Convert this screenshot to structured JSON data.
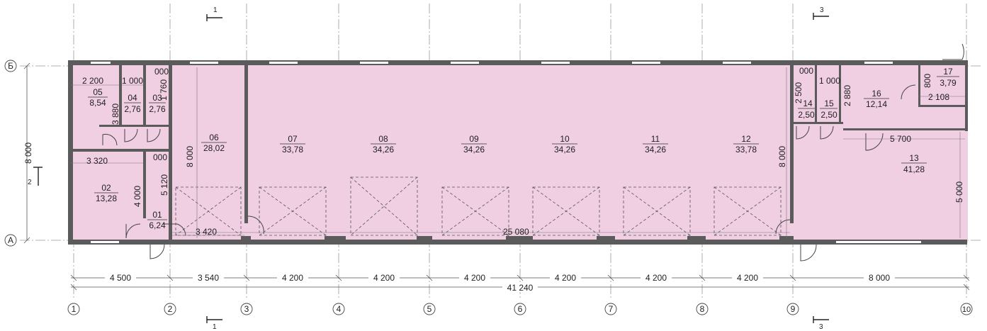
{
  "colors": {
    "room_fill": "#f0cfe3",
    "wall": "#5b5b5b",
    "line": "#555555",
    "axis_line": "#9a9a9a"
  },
  "axes_x": [
    {
      "label": "1"
    },
    {
      "label": "2"
    },
    {
      "label": "3"
    },
    {
      "label": "4"
    },
    {
      "label": "5"
    },
    {
      "label": "6"
    },
    {
      "label": "7"
    },
    {
      "label": "8"
    },
    {
      "label": "9"
    },
    {
      "label": "10"
    }
  ],
  "axes_y": [
    {
      "label": "Б"
    },
    {
      "label": "А"
    }
  ],
  "rooms": [
    {
      "num": "05",
      "area": "8,54"
    },
    {
      "num": "04",
      "area": "2,76"
    },
    {
      "num": "03",
      "area": "2,76"
    },
    {
      "num": "02",
      "area": "13,28"
    },
    {
      "num": "01",
      "area": "6,24"
    },
    {
      "num": "06",
      "area": "28,02"
    },
    {
      "num": "07",
      "area": "33,78"
    },
    {
      "num": "08",
      "area": "34,26"
    },
    {
      "num": "09",
      "area": "34,26"
    },
    {
      "num": "10",
      "area": "34,26"
    },
    {
      "num": "11",
      "area": "34,26"
    },
    {
      "num": "12",
      "area": "33,78"
    },
    {
      "num": "14",
      "area": "2,50"
    },
    {
      "num": "15",
      "area": "2,50"
    },
    {
      "num": "16",
      "area": "12,14"
    },
    {
      "num": "17",
      "area": "3,79"
    },
    {
      "num": "13",
      "area": "41,28"
    }
  ],
  "bottom_dims": {
    "spans": [
      "4 500",
      "3 540",
      "4 200",
      "4 200",
      "4 200",
      "4 200",
      "4 200",
      "4 200",
      "8 000"
    ],
    "total": "41 240"
  },
  "left_dim": "8 000",
  "inner_dims": {
    "d_2200": "2 200",
    "d_1000_a": "1 000",
    "d_000_a": "000",
    "d_1760": "1 760",
    "d_3880": "3 880",
    "d_3320": "3 320",
    "d_000_b": "000",
    "d_5120": "5 120",
    "d_4000": "4 000",
    "d_8000_06": "8 000",
    "d_3420": "3 420",
    "d_25080": "25 080",
    "d_8000_12": "8 000",
    "d_000_c": "000",
    "d_1000_b": "1 000",
    "d_2500": "2 500",
    "d_2880": "2 880",
    "d_800": "800",
    "d_2108": "2 108",
    "d_5700": "5 700",
    "d_5000": "5 000"
  },
  "section_marks": [
    {
      "num": "1"
    },
    {
      "num": "1"
    },
    {
      "num": "3"
    },
    {
      "num": "3"
    },
    {
      "num": "2"
    }
  ]
}
